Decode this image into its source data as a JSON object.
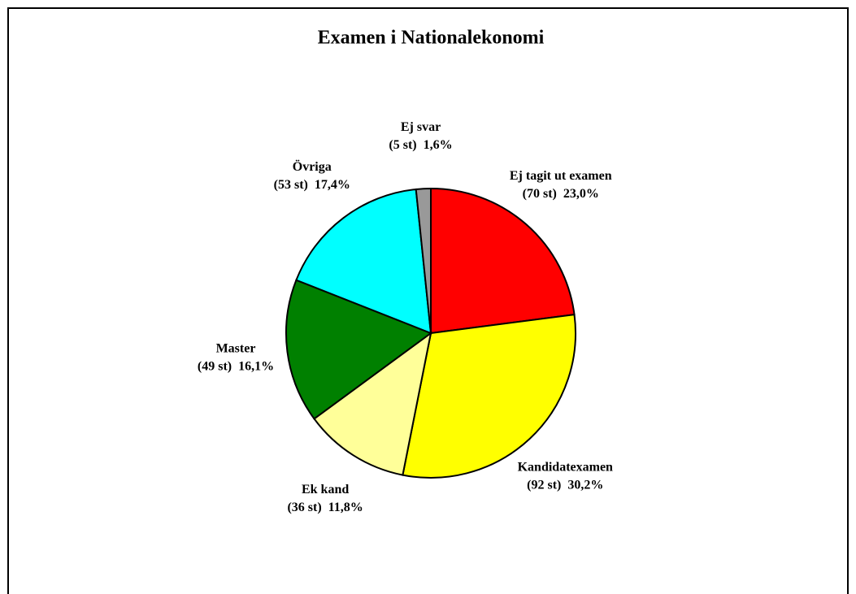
{
  "chart_data": {
    "type": "pie",
    "title": "Examen i Nationalekonomi",
    "categories": [
      "Ej tagit ut examen",
      "Kandidatexamen",
      "Ek kand",
      "Master",
      "Övriga",
      "Ej svar"
    ],
    "values": [
      70,
      92,
      36,
      49,
      53,
      5
    ],
    "value_labels": [
      "(70 st)  23,0%",
      "(92 st)  30,2%",
      "(36 st)  11,8%",
      "(49 st)  16,1%",
      "(53 st)  17,4%",
      "(5 st)  1,6%"
    ],
    "colors": [
      "#ff0000",
      "#ffff00",
      "#ffff99",
      "#008000",
      "#00ffff",
      "#999999"
    ]
  }
}
